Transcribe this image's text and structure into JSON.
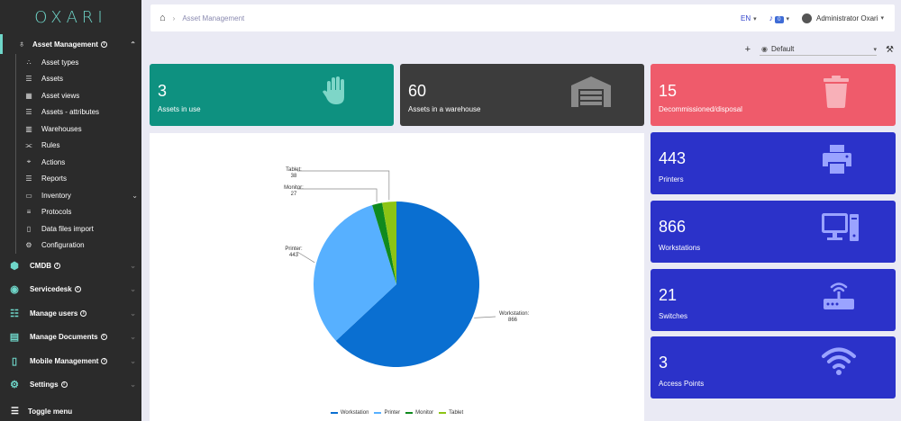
{
  "app": {
    "logo": "OXARI"
  },
  "sidebar": {
    "top": {
      "label": "Asset Management",
      "icon": "network-icon"
    },
    "sub": [
      {
        "label": "Asset types",
        "icon": "sitemap-icon"
      },
      {
        "label": "Assets",
        "icon": "list-icon"
      },
      {
        "label": "Asset views",
        "icon": "table-icon"
      },
      {
        "label": "Assets - attributes",
        "icon": "list-icon"
      },
      {
        "label": "Warehouses",
        "icon": "building-icon"
      },
      {
        "label": "Rules",
        "icon": "flow-icon"
      },
      {
        "label": "Actions",
        "icon": "crosshair-icon"
      },
      {
        "label": "Reports",
        "icon": "list-icon"
      },
      {
        "label": "Inventory",
        "icon": "inventory-icon"
      },
      {
        "label": "Protocols",
        "icon": "check-list-icon"
      },
      {
        "label": "Data files import",
        "icon": "file-icon"
      },
      {
        "label": "Configuration",
        "icon": "gear-icon"
      }
    ],
    "sections": [
      {
        "label": "CMDB",
        "icon": "cmdb-icon"
      },
      {
        "label": "Servicedesk",
        "icon": "eye-icon"
      },
      {
        "label": "Manage users",
        "icon": "users-icon"
      },
      {
        "label": "Manage Documents",
        "icon": "documents-icon"
      },
      {
        "label": "Mobile Management",
        "icon": "mobile-icon"
      },
      {
        "label": "Settings",
        "icon": "gear-icon"
      }
    ],
    "toggle": "Toggle menu"
  },
  "topbar": {
    "breadcrumb": "Asset Management",
    "lang": "EN",
    "notifications": "0",
    "user": "Administrator Oxari"
  },
  "toolbar": {
    "view": "Default"
  },
  "cards": [
    {
      "value": "3",
      "label": "Assets in use",
      "color": "#0e9180",
      "icon": "hand-icon"
    },
    {
      "value": "60",
      "label": "Assets in a warehouse",
      "color": "#3c3c3c",
      "icon": "warehouse-icon"
    },
    {
      "value": "15",
      "label": "Decommissioned/disposal",
      "color": "#ef5b6b",
      "icon": "trash-icon"
    },
    {
      "value": "443",
      "label": "Printers",
      "color": "#2b32c9",
      "icon": "printer-icon"
    },
    {
      "value": "866",
      "label": "Workstations",
      "color": "#2b32c9",
      "icon": "desktop-icon"
    },
    {
      "value": "21",
      "label": "Switches",
      "color": "#2b32c9",
      "icon": "router-icon"
    },
    {
      "value": "3",
      "label": "Access Points",
      "color": "#2b32c9",
      "icon": "wifi-icon"
    }
  ],
  "chart_data": {
    "type": "pie",
    "categories": [
      "Workstation",
      "Printer",
      "Monitor",
      "Tablet"
    ],
    "values": [
      866,
      443,
      27,
      38
    ],
    "colors": [
      "#0a6fd1",
      "#57b0ff",
      "#0f8a1e",
      "#8cc414"
    ],
    "labels": [
      {
        "name": "Workstation:",
        "value": "866"
      },
      {
        "name": "Printer:",
        "value": "443"
      },
      {
        "name": "Monitor:",
        "value": "27"
      },
      {
        "name": "Tablet:",
        "value": "38"
      }
    ],
    "legend": "bottom"
  }
}
